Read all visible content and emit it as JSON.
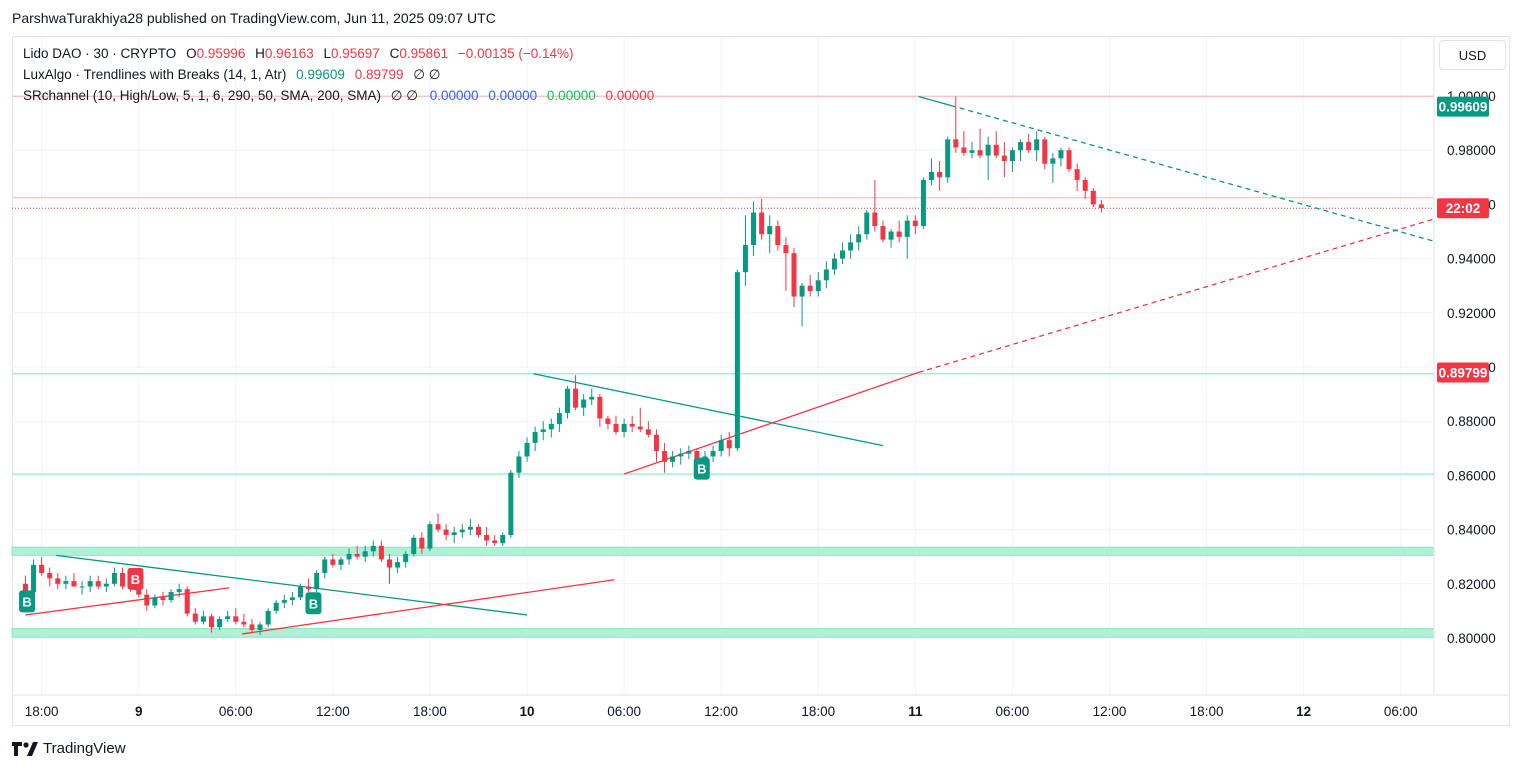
{
  "caption": "ParshwaTurakhiya28 published on TradingView.com, Jun 11, 2025 09:07 UTC",
  "legend": {
    "line1": {
      "symbol": "Lido DAO · 30 · CRYPTO",
      "o_label": "O",
      "o": "0.95996",
      "h_label": "H",
      "h": "0.96163",
      "l_label": "L",
      "l": "0.95697",
      "c_label": "C",
      "c": "0.95861",
      "change": "−0.00135 (−0.14%)"
    },
    "line2": {
      "name": "LuxAlgo · Trendlines with Breaks (14, 1, Atr)",
      "v1": "0.99609",
      "v2": "0.89799",
      "tail": "∅ ∅"
    },
    "line3": {
      "name": "SRchannel (10, High/Low, 5, 1, 6, 290, 50, SMA, 200, SMA)",
      "tail": "∅ ∅",
      "v1": "0.00000",
      "v2": "0.00000",
      "v3": "0.00000",
      "v4": "0.00000"
    }
  },
  "currency_button": "USD",
  "brand": "TradingView",
  "colors": {
    "up": "#089981",
    "down": "#f23645",
    "zone": "#b2f0d6",
    "zone_line": "#8fe3c4",
    "resistance": "#f7c6c6"
  },
  "chart_data": {
    "type": "candlestick",
    "price_ticks": [
      "0.80000",
      "0.82000",
      "0.84000",
      "0.86000",
      "0.88000",
      "0.90000",
      "0.92000",
      "0.94000",
      "0.96000",
      "0.98000",
      "1.00000"
    ],
    "ylim": [
      0.785,
      1.02
    ],
    "time_labels": [
      "18:00",
      "9",
      "06:00",
      "12:00",
      "18:00",
      "10",
      "06:00",
      "12:00",
      "18:00",
      "11",
      "06:00",
      "12:00",
      "18:00",
      "12",
      "06:00"
    ],
    "time_label_hours": [
      18,
      24,
      30,
      36,
      42,
      48,
      54,
      60,
      66,
      72,
      78,
      84,
      90,
      96,
      102
    ],
    "bold_time_labels": [
      "9",
      "10",
      "11",
      "12"
    ],
    "price_badges": [
      {
        "label": "0.99609",
        "value": 0.99609,
        "color": "#089981"
      },
      {
        "label": "22:02",
        "value": 0.9586,
        "color": "#f23645"
      },
      {
        "label": "0.89799",
        "value": 0.89799,
        "color": "#f23645"
      }
    ],
    "sr_zones": [
      [
        0.8305,
        0.8335
      ],
      [
        0.8003,
        0.8035
      ]
    ],
    "sr_lines": [
      0.8975,
      0.8605
    ],
    "resistance_lines": [
      0.99985,
      0.9625
    ],
    "current_price": 0.9586,
    "trendlines": [
      {
        "color": "#089981",
        "style": "solid",
        "points": [
          [
            18.9,
            0.8305
          ],
          [
            48,
            0.8085
          ]
        ]
      },
      {
        "color": "#f23645",
        "style": "solid",
        "points": [
          [
            17,
            0.8085
          ],
          [
            29.6,
            0.8185
          ]
        ]
      },
      {
        "color": "#f23645",
        "style": "solid",
        "points": [
          [
            30.4,
            0.8015
          ],
          [
            53.4,
            0.8215
          ]
        ]
      },
      {
        "color": "#089981",
        "style": "solid",
        "points": [
          [
            48.4,
            0.8975
          ],
          [
            70,
            0.871
          ]
        ]
      },
      {
        "color": "#f23645",
        "style": "solid",
        "points": [
          [
            54,
            0.8605
          ],
          [
            72.2,
            0.898
          ]
        ]
      },
      {
        "color": "#f23645",
        "style": "dashed",
        "points": [
          [
            72.2,
            0.898
          ],
          [
            104,
            0.9545
          ]
        ]
      },
      {
        "color": "#089981",
        "style": "solid",
        "points": [
          [
            72.2,
            0.9998
          ],
          [
            74.2,
            0.9965
          ]
        ]
      },
      {
        "color": "#089981",
        "style": "dashed",
        "points": [
          [
            74.2,
            0.9965
          ],
          [
            104,
            0.9465
          ]
        ]
      }
    ],
    "signals": [
      {
        "label": "B",
        "hour": 17.1,
        "value": 0.8135,
        "color": "#089981"
      },
      {
        "label": "B",
        "hour": 23.8,
        "value": 0.8218,
        "color": "#f23645"
      },
      {
        "label": "B",
        "hour": 34.8,
        "value": 0.8128,
        "color": "#089981"
      },
      {
        "label": "B",
        "hour": 58.8,
        "value": 0.8625,
        "color": "#089981"
      }
    ],
    "candles_start_hour": 17.0,
    "candle_interval_hours": 0.5,
    "ohlc": [
      [
        0.82,
        0.823,
        0.815,
        0.817
      ],
      [
        0.817,
        0.829,
        0.816,
        0.827
      ],
      [
        0.827,
        0.83,
        0.823,
        0.824
      ],
      [
        0.824,
        0.826,
        0.819,
        0.822
      ],
      [
        0.822,
        0.824,
        0.818,
        0.82
      ],
      [
        0.82,
        0.823,
        0.818,
        0.821
      ],
      [
        0.821,
        0.824,
        0.819,
        0.819
      ],
      [
        0.819,
        0.821,
        0.816,
        0.819
      ],
      [
        0.819,
        0.823,
        0.817,
        0.821
      ],
      [
        0.821,
        0.823,
        0.818,
        0.819
      ],
      [
        0.819,
        0.822,
        0.817,
        0.82
      ],
      [
        0.82,
        0.826,
        0.819,
        0.824
      ],
      [
        0.824,
        0.826,
        0.818,
        0.819
      ],
      [
        0.819,
        0.822,
        0.817,
        0.821
      ],
      [
        0.821,
        0.824,
        0.815,
        0.816
      ],
      [
        0.816,
        0.818,
        0.81,
        0.812
      ],
      [
        0.812,
        0.816,
        0.811,
        0.815
      ],
      [
        0.815,
        0.817,
        0.812,
        0.814
      ],
      [
        0.814,
        0.818,
        0.813,
        0.817
      ],
      [
        0.817,
        0.82,
        0.815,
        0.818
      ],
      [
        0.818,
        0.819,
        0.808,
        0.809
      ],
      [
        0.809,
        0.811,
        0.805,
        0.806
      ],
      [
        0.806,
        0.81,
        0.805,
        0.808
      ],
      [
        0.808,
        0.809,
        0.802,
        0.804
      ],
      [
        0.804,
        0.808,
        0.803,
        0.807
      ],
      [
        0.807,
        0.81,
        0.806,
        0.808
      ],
      [
        0.808,
        0.811,
        0.805,
        0.806
      ],
      [
        0.806,
        0.809,
        0.804,
        0.805
      ],
      [
        0.805,
        0.807,
        0.802,
        0.803
      ],
      [
        0.803,
        0.806,
        0.801,
        0.805
      ],
      [
        0.805,
        0.811,
        0.804,
        0.81
      ],
      [
        0.81,
        0.814,
        0.809,
        0.813
      ],
      [
        0.813,
        0.816,
        0.811,
        0.814
      ],
      [
        0.814,
        0.817,
        0.812,
        0.815
      ],
      [
        0.815,
        0.82,
        0.814,
        0.819
      ],
      [
        0.819,
        0.822,
        0.817,
        0.818
      ],
      [
        0.818,
        0.825,
        0.817,
        0.824
      ],
      [
        0.824,
        0.83,
        0.822,
        0.829
      ],
      [
        0.829,
        0.831,
        0.826,
        0.827
      ],
      [
        0.827,
        0.83,
        0.825,
        0.829
      ],
      [
        0.829,
        0.833,
        0.827,
        0.831
      ],
      [
        0.831,
        0.834,
        0.829,
        0.83
      ],
      [
        0.83,
        0.834,
        0.828,
        0.832
      ],
      [
        0.832,
        0.836,
        0.83,
        0.834
      ],
      [
        0.834,
        0.836,
        0.828,
        0.829
      ],
      [
        0.829,
        0.831,
        0.82,
        0.826
      ],
      [
        0.826,
        0.83,
        0.824,
        0.828
      ],
      [
        0.828,
        0.832,
        0.826,
        0.831
      ],
      [
        0.831,
        0.838,
        0.83,
        0.837
      ],
      [
        0.837,
        0.839,
        0.831,
        0.833
      ],
      [
        0.833,
        0.843,
        0.832,
        0.842
      ],
      [
        0.842,
        0.846,
        0.839,
        0.84
      ],
      [
        0.84,
        0.842,
        0.836,
        0.838
      ],
      [
        0.838,
        0.841,
        0.835,
        0.839
      ],
      [
        0.839,
        0.842,
        0.837,
        0.84
      ],
      [
        0.84,
        0.844,
        0.838,
        0.841
      ],
      [
        0.841,
        0.842,
        0.837,
        0.838
      ],
      [
        0.838,
        0.841,
        0.834,
        0.836
      ],
      [
        0.836,
        0.838,
        0.834,
        0.835
      ],
      [
        0.835,
        0.839,
        0.834,
        0.838
      ],
      [
        0.838,
        0.862,
        0.837,
        0.861
      ],
      [
        0.861,
        0.869,
        0.859,
        0.867
      ],
      [
        0.867,
        0.874,
        0.865,
        0.872
      ],
      [
        0.872,
        0.878,
        0.869,
        0.876
      ],
      [
        0.876,
        0.88,
        0.873,
        0.877
      ],
      [
        0.877,
        0.881,
        0.874,
        0.879
      ],
      [
        0.879,
        0.885,
        0.876,
        0.883
      ],
      [
        0.883,
        0.893,
        0.881,
        0.892
      ],
      [
        0.892,
        0.897,
        0.884,
        0.885
      ],
      [
        0.885,
        0.89,
        0.882,
        0.888
      ],
      [
        0.888,
        0.892,
        0.886,
        0.889
      ],
      [
        0.889,
        0.89,
        0.878,
        0.881
      ],
      [
        0.881,
        0.882,
        0.877,
        0.879
      ],
      [
        0.879,
        0.882,
        0.875,
        0.876
      ],
      [
        0.876,
        0.881,
        0.874,
        0.879
      ],
      [
        0.879,
        0.882,
        0.876,
        0.878
      ],
      [
        0.878,
        0.885,
        0.876,
        0.877
      ],
      [
        0.877,
        0.88,
        0.874,
        0.875
      ],
      [
        0.875,
        0.877,
        0.865,
        0.869
      ],
      [
        0.869,
        0.872,
        0.861,
        0.865
      ],
      [
        0.865,
        0.869,
        0.863,
        0.867
      ],
      [
        0.867,
        0.87,
        0.864,
        0.868
      ],
      [
        0.868,
        0.871,
        0.866,
        0.869
      ],
      [
        0.869,
        0.87,
        0.863,
        0.864
      ],
      [
        0.864,
        0.869,
        0.862,
        0.867
      ],
      [
        0.867,
        0.871,
        0.865,
        0.869
      ],
      [
        0.869,
        0.875,
        0.867,
        0.873
      ],
      [
        0.873,
        0.876,
        0.867,
        0.87
      ],
      [
        0.87,
        0.936,
        0.869,
        0.935
      ],
      [
        0.935,
        0.956,
        0.93,
        0.945
      ],
      [
        0.945,
        0.961,
        0.941,
        0.957
      ],
      [
        0.957,
        0.962,
        0.947,
        0.949
      ],
      [
        0.949,
        0.956,
        0.942,
        0.952
      ],
      [
        0.952,
        0.954,
        0.943,
        0.945
      ],
      [
        0.945,
        0.948,
        0.928,
        0.942
      ],
      [
        0.942,
        0.944,
        0.922,
        0.926
      ],
      [
        0.926,
        0.931,
        0.915,
        0.93
      ],
      [
        0.93,
        0.934,
        0.926,
        0.928
      ],
      [
        0.928,
        0.935,
        0.926,
        0.932
      ],
      [
        0.932,
        0.939,
        0.929,
        0.936
      ],
      [
        0.936,
        0.942,
        0.934,
        0.94
      ],
      [
        0.94,
        0.946,
        0.938,
        0.943
      ],
      [
        0.943,
        0.949,
        0.94,
        0.946
      ],
      [
        0.946,
        0.952,
        0.943,
        0.949
      ],
      [
        0.949,
        0.958,
        0.947,
        0.957
      ],
      [
        0.957,
        0.969,
        0.95,
        0.952
      ],
      [
        0.952,
        0.954,
        0.946,
        0.947
      ],
      [
        0.947,
        0.951,
        0.944,
        0.95
      ],
      [
        0.95,
        0.954,
        0.946,
        0.948
      ],
      [
        0.948,
        0.956,
        0.94,
        0.954
      ],
      [
        0.954,
        0.956,
        0.949,
        0.952
      ],
      [
        0.952,
        0.97,
        0.951,
        0.969
      ],
      [
        0.969,
        0.977,
        0.967,
        0.972
      ],
      [
        0.972,
        0.976,
        0.965,
        0.97
      ],
      [
        0.97,
        0.985,
        0.968,
        0.984
      ],
      [
        0.984,
        0.9998,
        0.979,
        0.981
      ],
      [
        0.981,
        0.987,
        0.978,
        0.979
      ],
      [
        0.979,
        0.983,
        0.977,
        0.98
      ],
      [
        0.98,
        0.988,
        0.977,
        0.978
      ],
      [
        0.978,
        0.985,
        0.969,
        0.982
      ],
      [
        0.982,
        0.987,
        0.977,
        0.978
      ],
      [
        0.978,
        0.983,
        0.97,
        0.976
      ],
      [
        0.976,
        0.981,
        0.972,
        0.98
      ],
      [
        0.98,
        0.984,
        0.976,
        0.983
      ],
      [
        0.983,
        0.986,
        0.979,
        0.98
      ],
      [
        0.98,
        0.987,
        0.976,
        0.984
      ],
      [
        0.984,
        0.985,
        0.973,
        0.975
      ],
      [
        0.975,
        0.979,
        0.968,
        0.977
      ],
      [
        0.977,
        0.981,
        0.974,
        0.98
      ],
      [
        0.98,
        0.981,
        0.972,
        0.973
      ],
      [
        0.973,
        0.975,
        0.965,
        0.969
      ],
      [
        0.969,
        0.97,
        0.962,
        0.965
      ],
      [
        0.965,
        0.966,
        0.959,
        0.96
      ],
      [
        0.96,
        0.9616,
        0.957,
        0.9586
      ]
    ]
  }
}
